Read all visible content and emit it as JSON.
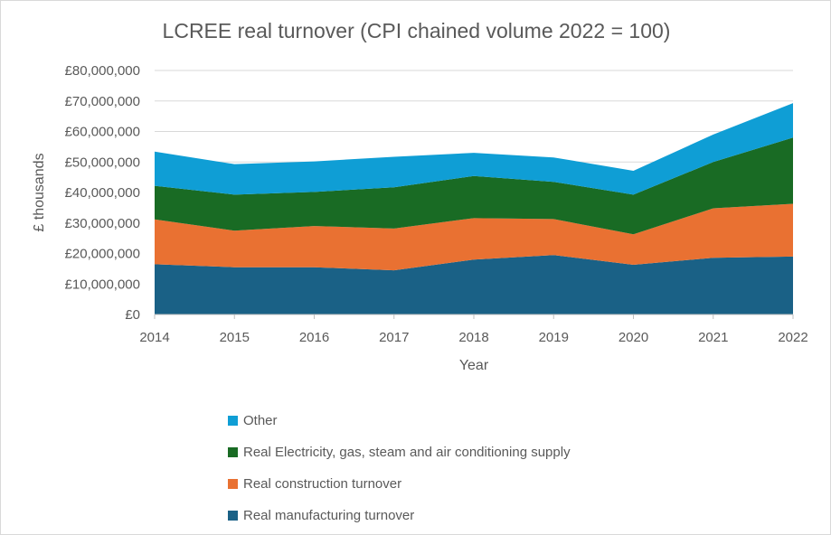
{
  "chart_data": {
    "type": "area",
    "stacked": true,
    "title": "LCREE real turnover (CPI chained volume 2022 = 100)",
    "xlabel": "Year",
    "ylabel": "£ thousands",
    "categories": [
      "2014",
      "2015",
      "2016",
      "2017",
      "2018",
      "2019",
      "2020",
      "2021",
      "2022"
    ],
    "ylim": [
      0,
      80000000
    ],
    "yticks": [
      "£0",
      "£10,000,000",
      "£20,000,000",
      "£30,000,000",
      "£40,000,000",
      "£50,000,000",
      "£60,000,000",
      "£70,000,000",
      "£80,000,000"
    ],
    "grid": true,
    "legend_position": "bottom",
    "series": [
      {
        "name": "Real manufacturing turnover",
        "color": "#1a6186",
        "values": [
          16500000,
          15500000,
          15500000,
          14500000,
          18000000,
          19500000,
          16300000,
          18600000,
          19000000
        ]
      },
      {
        "name": "Real construction turnover",
        "color": "#e97132",
        "values": [
          14700000,
          12000000,
          13500000,
          13700000,
          13600000,
          11800000,
          10000000,
          16200000,
          17300000
        ]
      },
      {
        "name": "Real Electricity, gas, steam and air conditioning supply",
        "color": "#196b24",
        "values": [
          11000000,
          11800000,
          11200000,
          13500000,
          13800000,
          12200000,
          13000000,
          15200000,
          21700000
        ]
      },
      {
        "name": "Other",
        "color": "#0f9ed5",
        "values": [
          11200000,
          10000000,
          10000000,
          10000000,
          7600000,
          8000000,
          7800000,
          9000000,
          11300000
        ]
      }
    ],
    "legend_order": [
      3,
      2,
      1,
      0
    ]
  }
}
